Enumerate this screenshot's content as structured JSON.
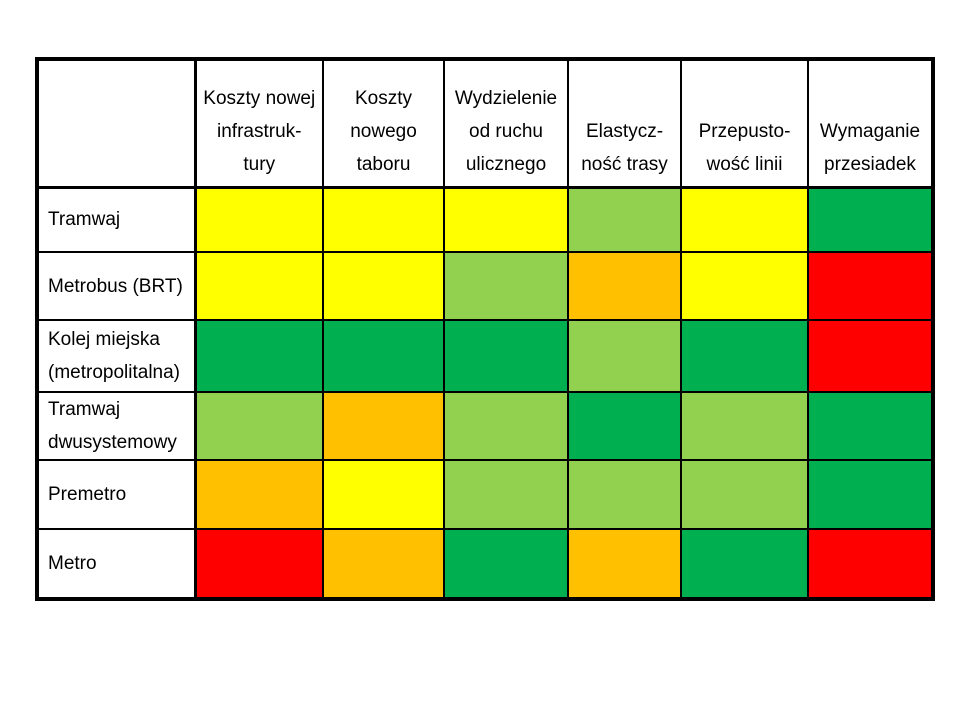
{
  "slide": {
    "background": "#ffffff"
  },
  "colors": {
    "yellow": "#FFFF00",
    "light_green": "#92D050",
    "green": "#00B050",
    "orange": "#FFC000",
    "red": "#FF0000",
    "border": "#000000",
    "text": "#000000"
  },
  "table": {
    "corner_label": "",
    "columns": [
      {
        "lines": [
          "Koszty nowej",
          "infrastruk-",
          "tury"
        ]
      },
      {
        "lines": [
          "Koszty",
          "nowego",
          "taboru"
        ]
      },
      {
        "lines": [
          "Wydzielenie",
          "od ruchu",
          "ulicznego"
        ]
      },
      {
        "lines": [
          "Elastycz-",
          "ność trasy"
        ]
      },
      {
        "lines": [
          "Przepusto-",
          "wość linii"
        ]
      },
      {
        "lines": [
          "Wymaganie",
          "przesiadek"
        ]
      }
    ],
    "rows": [
      {
        "label_lines": [
          "Tramwaj"
        ],
        "cells": [
          "yellow",
          "yellow",
          "yellow",
          "light_green",
          "yellow",
          "green"
        ]
      },
      {
        "label_lines": [
          "Metrobus (BRT)"
        ],
        "cells": [
          "yellow",
          "yellow",
          "light_green",
          "orange",
          "yellow",
          "red"
        ]
      },
      {
        "label_lines": [
          "Kolej miejska",
          "(metropolitalna)"
        ],
        "cells": [
          "green",
          "green",
          "green",
          "light_green",
          "green",
          "red"
        ]
      },
      {
        "label_lines": [
          "Tramwaj",
          "dwusystemowy"
        ],
        "cells": [
          "light_green",
          "orange",
          "light_green",
          "green",
          "light_green",
          "green"
        ]
      },
      {
        "label_lines": [
          "Premetro"
        ],
        "cells": [
          "orange",
          "yellow",
          "light_green",
          "light_green",
          "light_green",
          "green"
        ]
      },
      {
        "label_lines": [
          "Metro"
        ],
        "cells": [
          "red",
          "orange",
          "green",
          "orange",
          "green",
          "red"
        ]
      }
    ]
  },
  "chart_data": {
    "type": "heatmap",
    "title": "",
    "categories_x": [
      "Koszty nowej infrastruktury",
      "Koszty nowego taboru",
      "Wydzielenie od ruchu ulicznego",
      "Elastyczność trasy",
      "Przepustowość linii",
      "Wymaganie przesiadek"
    ],
    "categories_y": [
      "Tramwaj",
      "Metrobus (BRT)",
      "Kolej miejska (metropolitalna)",
      "Tramwaj dwusystemowy",
      "Premetro",
      "Metro"
    ],
    "values": [
      [
        "yellow",
        "yellow",
        "yellow",
        "light_green",
        "yellow",
        "green"
      ],
      [
        "yellow",
        "yellow",
        "light_green",
        "orange",
        "yellow",
        "red"
      ],
      [
        "green",
        "green",
        "green",
        "light_green",
        "green",
        "red"
      ],
      [
        "light_green",
        "orange",
        "light_green",
        "green",
        "light_green",
        "green"
      ],
      [
        "orange",
        "yellow",
        "light_green",
        "light_green",
        "light_green",
        "green"
      ],
      [
        "red",
        "orange",
        "green",
        "orange",
        "green",
        "red"
      ]
    ],
    "color_legend": {
      "green": "#00B050",
      "light_green": "#92D050",
      "yellow": "#FFFF00",
      "orange": "#FFC000",
      "red": "#FF0000"
    },
    "legend_position": "none",
    "grid": true
  }
}
